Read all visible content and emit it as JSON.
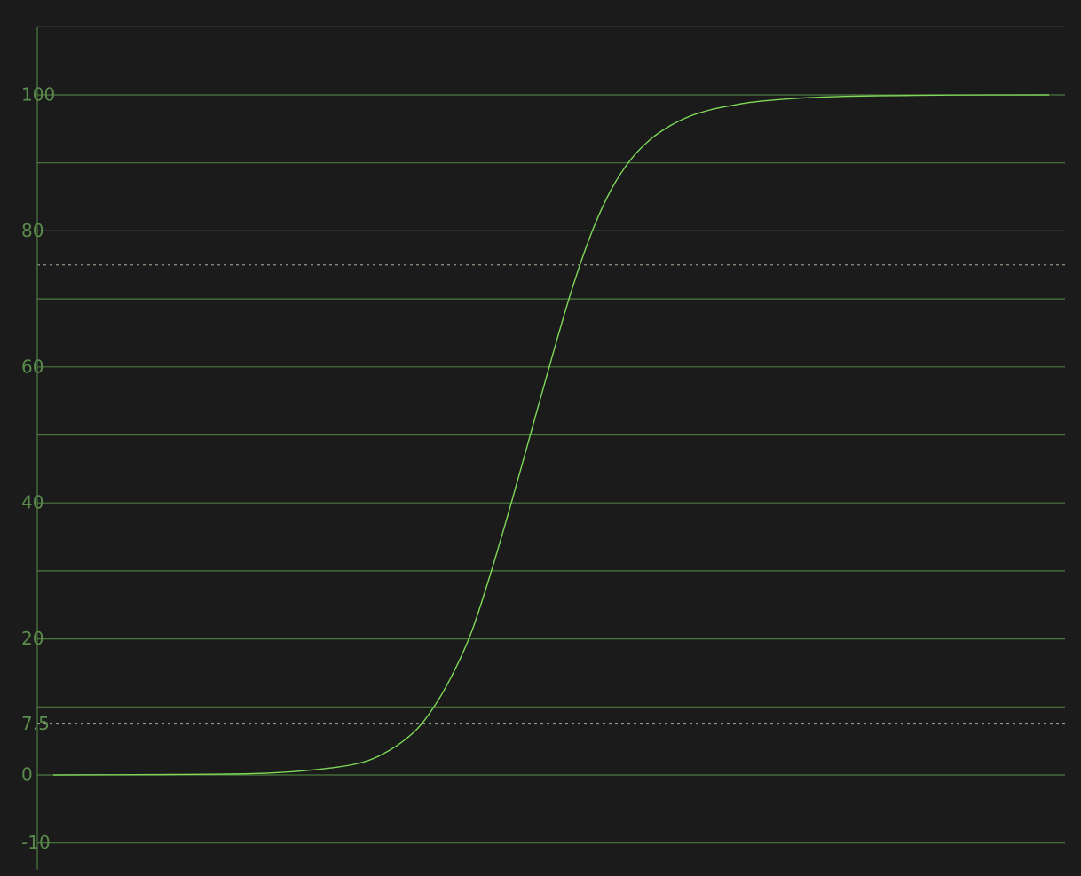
{
  "chart_data": {
    "type": "line",
    "title": "",
    "xlabel": "",
    "ylabel": "",
    "ylim": [
      -10,
      110
    ],
    "xlim": [
      0,
      1
    ],
    "grid": true,
    "y_gridlines": [
      -10,
      0,
      10,
      20,
      30,
      40,
      50,
      60,
      70,
      80,
      90,
      100,
      110
    ],
    "y_ticks": [
      {
        "value": 100,
        "label": "100"
      },
      {
        "value": 80,
        "label": "80"
      },
      {
        "value": 60,
        "label": "60"
      },
      {
        "value": 40,
        "label": "40"
      },
      {
        "value": 20,
        "label": "20"
      },
      {
        "value": 7.5,
        "label": "7.5"
      },
      {
        "value": 0,
        "label": "0"
      },
      {
        "value": -10,
        "label": "-10"
      }
    ],
    "reference_lines": [
      75,
      7.5
    ],
    "series": [
      {
        "color": "#7fd858",
        "x": [
          0.0,
          0.1,
          0.2,
          0.25,
          0.3,
          0.33,
          0.36,
          0.38,
          0.4,
          0.42,
          0.44,
          0.46,
          0.48,
          0.5,
          0.52,
          0.54,
          0.56,
          0.58,
          0.6,
          0.62,
          0.64,
          0.66,
          0.68,
          0.7,
          0.72,
          0.76,
          0.8,
          0.85,
          0.9,
          1.0
        ],
        "y": [
          0.0,
          0.05,
          0.2,
          0.6,
          1.5,
          3.0,
          6.0,
          9.5,
          14.5,
          21.0,
          30.0,
          40.0,
          50.5,
          61.0,
          71.0,
          79.5,
          86.0,
          90.5,
          93.5,
          95.5,
          96.9,
          97.8,
          98.4,
          98.9,
          99.2,
          99.6,
          99.8,
          99.9,
          99.97,
          100.0
        ]
      }
    ]
  },
  "colors": {
    "background": "#1b1b1b",
    "grid": "#4c7a3e",
    "axis": "#4c7a3e",
    "reference": "#8a9a82",
    "curve": "#7fd858",
    "label": "#5a8a4c"
  }
}
